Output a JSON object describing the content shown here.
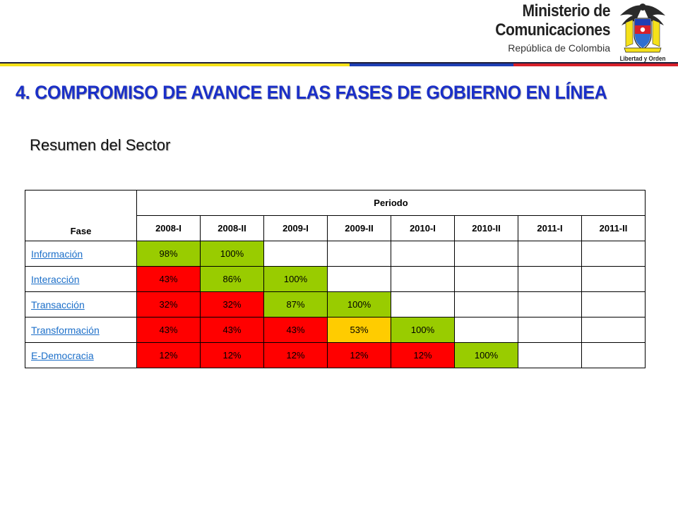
{
  "header": {
    "ministry_line1": "Ministerio de",
    "ministry_line2": "Comunicaciones",
    "ministry_line3": "República de Colombia",
    "crest_motto": "Libertad y Orden"
  },
  "colors": {
    "title_blue": "#1a2fc8",
    "link_blue": "#1c6fc9",
    "green": "#99cc00",
    "red": "#ff0000",
    "yellow": "#ffcc00",
    "bar_yellow": "#f5e11a",
    "bar_blue": "#1e3fb4",
    "bar_red": "#d7202a"
  },
  "main": {
    "title": "4. COMPROMISO DE AVANCE EN LAS FASES DE GOBIERNO EN LÍNEA",
    "subtitle": "Resumen del Sector"
  },
  "table": {
    "fase_header": "Fase",
    "periodo_header": "Periodo",
    "periods": [
      "2008-I",
      "2008-II",
      "2009-I",
      "2009-II",
      "2010-I",
      "2010-II",
      "2011-I",
      "2011-II"
    ],
    "rows": [
      {
        "phase": "Información",
        "cells": [
          {
            "value": "98%",
            "status": "green"
          },
          {
            "value": "100%",
            "status": "green"
          },
          {
            "value": "",
            "status": "empty"
          },
          {
            "value": "",
            "status": "empty"
          },
          {
            "value": "",
            "status": "empty"
          },
          {
            "value": "",
            "status": "empty"
          },
          {
            "value": "",
            "status": "empty"
          },
          {
            "value": "",
            "status": "empty"
          }
        ]
      },
      {
        "phase": "Interacción",
        "cells": [
          {
            "value": "43%",
            "status": "red"
          },
          {
            "value": "86%",
            "status": "green"
          },
          {
            "value": "100%",
            "status": "green"
          },
          {
            "value": "",
            "status": "empty"
          },
          {
            "value": "",
            "status": "empty"
          },
          {
            "value": "",
            "status": "empty"
          },
          {
            "value": "",
            "status": "empty"
          },
          {
            "value": "",
            "status": "empty"
          }
        ]
      },
      {
        "phase": "Transacción",
        "cells": [
          {
            "value": "32%",
            "status": "red"
          },
          {
            "value": "32%",
            "status": "red"
          },
          {
            "value": "87%",
            "status": "green"
          },
          {
            "value": "100%",
            "status": "green"
          },
          {
            "value": "",
            "status": "empty"
          },
          {
            "value": "",
            "status": "empty"
          },
          {
            "value": "",
            "status": "empty"
          },
          {
            "value": "",
            "status": "empty"
          }
        ]
      },
      {
        "phase": "Transformación",
        "cells": [
          {
            "value": "43%",
            "status": "red"
          },
          {
            "value": "43%",
            "status": "red"
          },
          {
            "value": "43%",
            "status": "red"
          },
          {
            "value": "53%",
            "status": "yellow"
          },
          {
            "value": "100%",
            "status": "green"
          },
          {
            "value": "",
            "status": "empty"
          },
          {
            "value": "",
            "status": "empty"
          },
          {
            "value": "",
            "status": "empty"
          }
        ]
      },
      {
        "phase": "E-Democracia",
        "cells": [
          {
            "value": "12%",
            "status": "red"
          },
          {
            "value": "12%",
            "status": "red"
          },
          {
            "value": "12%",
            "status": "red"
          },
          {
            "value": "12%",
            "status": "red"
          },
          {
            "value": "12%",
            "status": "red"
          },
          {
            "value": "100%",
            "status": "green"
          },
          {
            "value": "",
            "status": "empty"
          },
          {
            "value": "",
            "status": "empty"
          }
        ]
      }
    ]
  }
}
